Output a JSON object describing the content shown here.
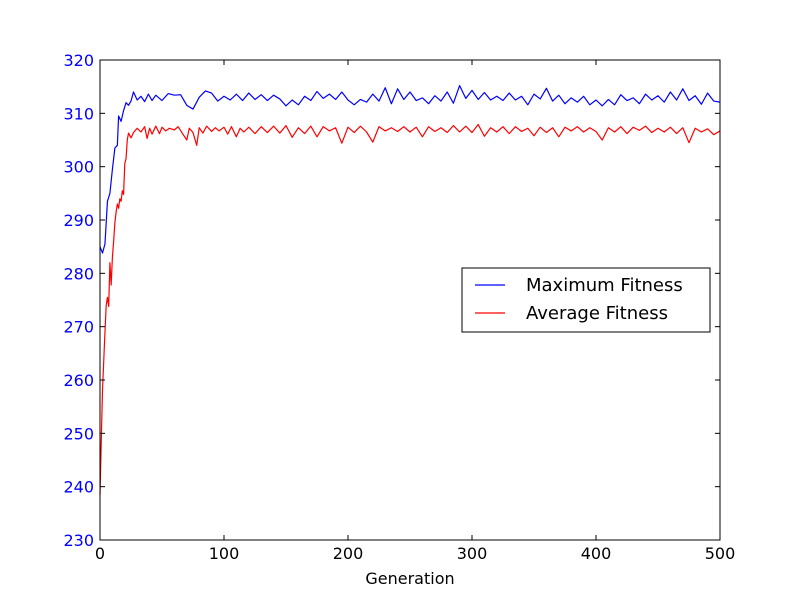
{
  "chart_data": {
    "type": "line",
    "title": "",
    "xlabel": "Generation",
    "ylabel": "",
    "xlim": [
      0,
      500
    ],
    "ylim": [
      230,
      320
    ],
    "grid": false,
    "legend_position": "center-right",
    "x_ticks": [
      0,
      100,
      200,
      300,
      400,
      500
    ],
    "x_tick_labels": [
      "0",
      "100",
      "200",
      "300",
      "400",
      "500"
    ],
    "y_ticks": [
      230,
      240,
      250,
      260,
      270,
      280,
      290,
      300,
      310,
      320
    ],
    "y_tick_labels": [
      "230",
      "240",
      "250",
      "260",
      "270",
      "280",
      "290",
      "300",
      "310",
      "320"
    ],
    "y_tick_label_color": "#0000ff",
    "series": [
      {
        "name": "Maximum Fitness",
        "color": "#0000ff",
        "points": [
          [
            0,
            285
          ],
          [
            2,
            283.8
          ],
          [
            4,
            285.5
          ],
          [
            6,
            293.5
          ],
          [
            8,
            295
          ],
          [
            10,
            299.5
          ],
          [
            12,
            303.5
          ],
          [
            14,
            304
          ],
          [
            15,
            309.5
          ],
          [
            17,
            308.5
          ],
          [
            19,
            310.5
          ],
          [
            21,
            312
          ],
          [
            23,
            311.5
          ],
          [
            25,
            312.3
          ],
          [
            27,
            314
          ],
          [
            30,
            312.5
          ],
          [
            33,
            313.2
          ],
          [
            36,
            312.2
          ],
          [
            39,
            313.6
          ],
          [
            42,
            312.4
          ],
          [
            45,
            313.4
          ],
          [
            50,
            312.4
          ],
          [
            55,
            313.7
          ],
          [
            60,
            313.4
          ],
          [
            65,
            313.5
          ],
          [
            70,
            311.5
          ],
          [
            75,
            310.8
          ],
          [
            80,
            313
          ],
          [
            85,
            314.2
          ],
          [
            90,
            313.8
          ],
          [
            95,
            312.3
          ],
          [
            100,
            313.2
          ],
          [
            105,
            312.5
          ],
          [
            110,
            313.6
          ],
          [
            115,
            312.4
          ],
          [
            120,
            313.8
          ],
          [
            125,
            312.6
          ],
          [
            130,
            313.5
          ],
          [
            135,
            312.4
          ],
          [
            140,
            313.4
          ],
          [
            145,
            312.7
          ],
          [
            150,
            311.4
          ],
          [
            155,
            312.5
          ],
          [
            160,
            311.6
          ],
          [
            165,
            313.2
          ],
          [
            170,
            312.4
          ],
          [
            175,
            314.1
          ],
          [
            180,
            312.8
          ],
          [
            185,
            313.6
          ],
          [
            190,
            312.6
          ],
          [
            195,
            314
          ],
          [
            200,
            312.5
          ],
          [
            205,
            311.6
          ],
          [
            210,
            312.6
          ],
          [
            215,
            312.1
          ],
          [
            220,
            313.6
          ],
          [
            225,
            312.3
          ],
          [
            230,
            314.8
          ],
          [
            235,
            311.8
          ],
          [
            240,
            314.6
          ],
          [
            245,
            312.6
          ],
          [
            250,
            314
          ],
          [
            255,
            312.4
          ],
          [
            260,
            312.9
          ],
          [
            265,
            311.8
          ],
          [
            270,
            313.3
          ],
          [
            275,
            312.3
          ],
          [
            280,
            314
          ],
          [
            285,
            311.9
          ],
          [
            290,
            315.2
          ],
          [
            295,
            312.8
          ],
          [
            300,
            314.3
          ],
          [
            305,
            312.6
          ],
          [
            310,
            313.9
          ],
          [
            315,
            312.5
          ],
          [
            320,
            313.2
          ],
          [
            325,
            312.4
          ],
          [
            330,
            313.8
          ],
          [
            335,
            312.5
          ],
          [
            340,
            313.2
          ],
          [
            345,
            311.6
          ],
          [
            350,
            313.6
          ],
          [
            355,
            312.7
          ],
          [
            360,
            314.7
          ],
          [
            365,
            312.3
          ],
          [
            370,
            313.4
          ],
          [
            375,
            311.8
          ],
          [
            380,
            312.9
          ],
          [
            385,
            312.1
          ],
          [
            390,
            313.2
          ],
          [
            395,
            311.6
          ],
          [
            400,
            312.5
          ],
          [
            405,
            311.4
          ],
          [
            410,
            312.6
          ],
          [
            415,
            311.6
          ],
          [
            420,
            313.5
          ],
          [
            425,
            312.4
          ],
          [
            430,
            312.9
          ],
          [
            435,
            311.8
          ],
          [
            440,
            313.6
          ],
          [
            445,
            312.5
          ],
          [
            450,
            313.3
          ],
          [
            455,
            312.1
          ],
          [
            460,
            314
          ],
          [
            465,
            312.5
          ],
          [
            470,
            314.6
          ],
          [
            475,
            312.4
          ],
          [
            480,
            313.3
          ],
          [
            485,
            311.7
          ],
          [
            490,
            313.8
          ],
          [
            495,
            312.3
          ],
          [
            500,
            312.1
          ]
        ]
      },
      {
        "name": "Average Fitness",
        "color": "#ff0000",
        "points": [
          [
            0,
            238.5
          ],
          [
            2,
            258
          ],
          [
            4,
            269
          ],
          [
            5,
            274
          ],
          [
            6,
            275.5
          ],
          [
            7,
            273.8
          ],
          [
            8,
            282
          ],
          [
            9,
            277.8
          ],
          [
            10,
            283
          ],
          [
            11,
            286
          ],
          [
            12,
            289.5
          ],
          [
            13,
            291.5
          ],
          [
            14,
            293
          ],
          [
            15,
            292.2
          ],
          [
            16,
            294
          ],
          [
            17,
            293.5
          ],
          [
            18,
            295.5
          ],
          [
            19,
            294.8
          ],
          [
            20,
            300.6
          ],
          [
            21,
            301.5
          ],
          [
            22,
            305
          ],
          [
            23,
            306.3
          ],
          [
            25,
            305.4
          ],
          [
            27,
            306.4
          ],
          [
            30,
            307.2
          ],
          [
            33,
            306.5
          ],
          [
            36,
            307.5
          ],
          [
            38,
            305.3
          ],
          [
            40,
            307.2
          ],
          [
            42,
            306.1
          ],
          [
            45,
            307.6
          ],
          [
            48,
            306.2
          ],
          [
            50,
            307.4
          ],
          [
            53,
            306.7
          ],
          [
            56,
            307.2
          ],
          [
            60,
            306.9
          ],
          [
            63,
            307.5
          ],
          [
            66,
            306.4
          ],
          [
            70,
            305
          ],
          [
            72,
            307.2
          ],
          [
            75,
            306.4
          ],
          [
            78,
            304
          ],
          [
            80,
            307.3
          ],
          [
            83,
            306.3
          ],
          [
            86,
            307.6
          ],
          [
            90,
            306.6
          ],
          [
            93,
            307.3
          ],
          [
            96,
            306.7
          ],
          [
            100,
            307.4
          ],
          [
            103,
            306.1
          ],
          [
            106,
            307.5
          ],
          [
            110,
            305.6
          ],
          [
            113,
            307.2
          ],
          [
            116,
            306.5
          ],
          [
            120,
            307.4
          ],
          [
            125,
            306.2
          ],
          [
            130,
            307.5
          ],
          [
            135,
            306.4
          ],
          [
            140,
            307.6
          ],
          [
            145,
            306.3
          ],
          [
            150,
            307.7
          ],
          [
            155,
            305.5
          ],
          [
            160,
            307.3
          ],
          [
            165,
            306.2
          ],
          [
            170,
            307.6
          ],
          [
            175,
            305.6
          ],
          [
            180,
            307.5
          ],
          [
            185,
            306.7
          ],
          [
            190,
            307.3
          ],
          [
            195,
            304.4
          ],
          [
            200,
            307.4
          ],
          [
            205,
            306.4
          ],
          [
            210,
            307.6
          ],
          [
            215,
            306.5
          ],
          [
            220,
            304.6
          ],
          [
            225,
            307.5
          ],
          [
            230,
            306.7
          ],
          [
            235,
            307.3
          ],
          [
            240,
            306.6
          ],
          [
            245,
            307.5
          ],
          [
            250,
            306.5
          ],
          [
            255,
            307.4
          ],
          [
            260,
            305.6
          ],
          [
            265,
            307.5
          ],
          [
            270,
            306.6
          ],
          [
            275,
            307.3
          ],
          [
            280,
            306.4
          ],
          [
            285,
            307.7
          ],
          [
            290,
            306.5
          ],
          [
            295,
            307.6
          ],
          [
            300,
            306.4
          ],
          [
            305,
            307.9
          ],
          [
            310,
            305.7
          ],
          [
            315,
            307.3
          ],
          [
            320,
            306.5
          ],
          [
            325,
            307.5
          ],
          [
            330,
            306.2
          ],
          [
            335,
            307.5
          ],
          [
            340,
            306.6
          ],
          [
            345,
            307.2
          ],
          [
            350,
            305.8
          ],
          [
            355,
            307.4
          ],
          [
            360,
            306.4
          ],
          [
            365,
            307.3
          ],
          [
            370,
            305.6
          ],
          [
            375,
            307.4
          ],
          [
            380,
            306.7
          ],
          [
            385,
            307.5
          ],
          [
            390,
            306.5
          ],
          [
            395,
            307.3
          ],
          [
            400,
            306.6
          ],
          [
            405,
            305
          ],
          [
            410,
            307.3
          ],
          [
            415,
            306.5
          ],
          [
            420,
            307.5
          ],
          [
            425,
            306.2
          ],
          [
            430,
            307.4
          ],
          [
            435,
            306.8
          ],
          [
            440,
            307.6
          ],
          [
            445,
            306.4
          ],
          [
            450,
            307.2
          ],
          [
            455,
            306.5
          ],
          [
            460,
            307.4
          ],
          [
            465,
            306.2
          ],
          [
            470,
            307.3
          ],
          [
            475,
            304.5
          ],
          [
            480,
            307.2
          ],
          [
            485,
            306.5
          ],
          [
            490,
            307.1
          ],
          [
            495,
            306
          ],
          [
            500,
            306.7
          ]
        ]
      }
    ]
  }
}
